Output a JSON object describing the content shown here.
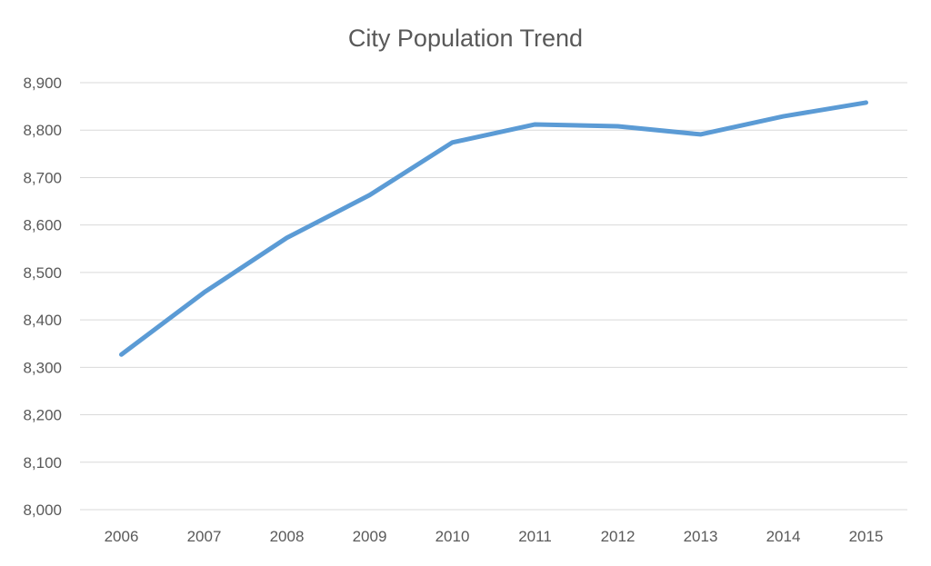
{
  "chart_data": {
    "type": "line",
    "title": "City Population Trend",
    "xlabel": "",
    "ylabel": "",
    "categories": [
      "2006",
      "2007",
      "2008",
      "2009",
      "2010",
      "2011",
      "2012",
      "2013",
      "2014",
      "2015"
    ],
    "series": [
      {
        "values": [
          8327,
          8458,
          8573,
          8663,
          8774,
          8812,
          8808,
          8791,
          8829,
          8858
        ],
        "color": "#5b9bd5"
      }
    ],
    "ylim": [
      8000,
      8900
    ],
    "yticks": [
      8000,
      8100,
      8200,
      8300,
      8400,
      8500,
      8600,
      8700,
      8800,
      8900
    ],
    "ytick_labels": [
      "8,000",
      "8,100",
      "8,200",
      "8,300",
      "8,400",
      "8,500",
      "8,600",
      "8,700",
      "8,800",
      "8,900"
    ],
    "grid": true,
    "legend": "none"
  }
}
